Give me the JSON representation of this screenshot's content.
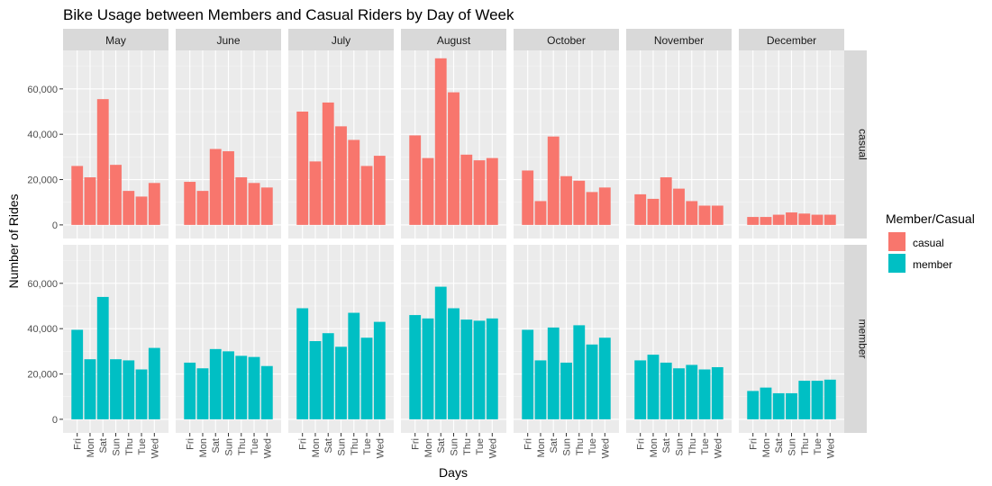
{
  "chart_data": {
    "type": "bar",
    "title": "Bike Usage between Members and Casual Riders by Day of Week",
    "xlabel": "Days",
    "ylabel": "Number of Rides",
    "categories": [
      "Fri",
      "Mon",
      "Sat",
      "Sun",
      "Thu",
      "Tue",
      "Wed"
    ],
    "columns": [
      "May",
      "June",
      "July",
      "August",
      "October",
      "November",
      "December"
    ],
    "rows": [
      "casual",
      "member"
    ],
    "ylim": [
      -6000,
      77000
    ],
    "y_ticks": [
      0,
      20000,
      40000,
      60000
    ],
    "y_tick_labels": [
      "0",
      "20,000",
      "40,000",
      "60,000"
    ],
    "grid": true,
    "legend": {
      "title": "Member/Casual",
      "position": "right",
      "entries": [
        {
          "label": "casual",
          "color": "#F8766D"
        },
        {
          "label": "member",
          "color": "#00BFC4"
        }
      ]
    },
    "series": [
      {
        "name": "casual",
        "color": "#F8766D",
        "panels": {
          "May": [
            26000,
            21000,
            55500,
            26500,
            15000,
            12500,
            18500
          ],
          "June": [
            19000,
            15000,
            33500,
            32500,
            21000,
            18500,
            16500
          ],
          "July": [
            50000,
            28000,
            54000,
            43500,
            37500,
            26000,
            30500
          ],
          "August": [
            39500,
            29500,
            73500,
            58500,
            31000,
            28500,
            29500
          ],
          "October": [
            24000,
            10500,
            39000,
            21500,
            19500,
            14500,
            16500
          ],
          "November": [
            13500,
            11500,
            21000,
            16000,
            10500,
            8500,
            8500
          ],
          "December": [
            3500,
            3500,
            4500,
            5500,
            5000,
            4500,
            4500
          ]
        }
      },
      {
        "name": "member",
        "color": "#00BFC4",
        "panels": {
          "May": [
            39500,
            26500,
            54000,
            26500,
            26000,
            22000,
            31500
          ],
          "June": [
            25000,
            22500,
            31000,
            30000,
            28000,
            27500,
            23500
          ],
          "July": [
            49000,
            34500,
            38000,
            32000,
            47000,
            36000,
            43000
          ],
          "August": [
            46000,
            44500,
            58500,
            49000,
            44000,
            43500,
            44500
          ],
          "October": [
            39500,
            26000,
            40500,
            25000,
            41500,
            33000,
            36000
          ],
          "November": [
            26000,
            28500,
            25000,
            22500,
            24000,
            22000,
            23000
          ],
          "December": [
            12500,
            14000,
            11500,
            11500,
            17000,
            17000,
            17500
          ]
        }
      }
    ]
  }
}
